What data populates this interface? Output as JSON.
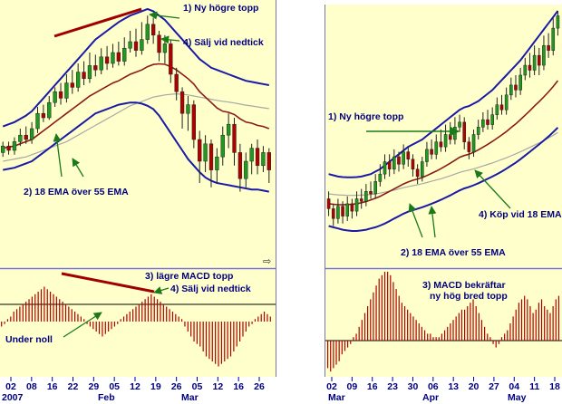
{
  "chart_data": [
    {
      "type": "candlestick",
      "panel": "left",
      "xaxis": {
        "year_label": "2007",
        "tick_labels": [
          "02",
          "08",
          "16",
          "22",
          "29",
          "05",
          "12",
          "19",
          "26",
          "05",
          "12",
          "16",
          "26"
        ],
        "month_labels": [
          "Feb",
          "Mar"
        ]
      },
      "price_ylim": [
        0,
        100
      ],
      "candles": [
        {
          "o": 34,
          "c": 37,
          "h": 39,
          "l": 32
        },
        {
          "o": 37,
          "c": 35,
          "h": 39,
          "l": 33
        },
        {
          "o": 35,
          "c": 39,
          "h": 41,
          "l": 33
        },
        {
          "o": 39,
          "c": 42,
          "h": 45,
          "l": 37
        },
        {
          "o": 42,
          "c": 40,
          "h": 46,
          "l": 38
        },
        {
          "o": 40,
          "c": 45,
          "h": 48,
          "l": 38
        },
        {
          "o": 45,
          "c": 52,
          "h": 55,
          "l": 43
        },
        {
          "o": 52,
          "c": 50,
          "h": 56,
          "l": 48
        },
        {
          "o": 50,
          "c": 57,
          "h": 60,
          "l": 49
        },
        {
          "o": 57,
          "c": 62,
          "h": 64,
          "l": 55
        },
        {
          "o": 62,
          "c": 59,
          "h": 66,
          "l": 56
        },
        {
          "o": 59,
          "c": 66,
          "h": 70,
          "l": 57
        },
        {
          "o": 66,
          "c": 64,
          "h": 72,
          "l": 61
        },
        {
          "o": 64,
          "c": 71,
          "h": 75,
          "l": 62
        },
        {
          "o": 71,
          "c": 68,
          "h": 76,
          "l": 65
        },
        {
          "o": 68,
          "c": 74,
          "h": 80,
          "l": 66
        },
        {
          "o": 74,
          "c": 72,
          "h": 79,
          "l": 69
        },
        {
          "o": 72,
          "c": 78,
          "h": 82,
          "l": 70
        },
        {
          "o": 78,
          "c": 75,
          "h": 83,
          "l": 72
        },
        {
          "o": 75,
          "c": 80,
          "h": 84,
          "l": 73
        },
        {
          "o": 80,
          "c": 76,
          "h": 85,
          "l": 74
        },
        {
          "o": 76,
          "c": 82,
          "h": 87,
          "l": 74
        },
        {
          "o": 82,
          "c": 85,
          "h": 90,
          "l": 80
        },
        {
          "o": 85,
          "c": 81,
          "h": 91,
          "l": 78
        },
        {
          "o": 81,
          "c": 86,
          "h": 94,
          "l": 79
        },
        {
          "o": 86,
          "c": 93,
          "h": 97,
          "l": 84
        },
        {
          "o": 93,
          "c": 88,
          "h": 96,
          "l": 84
        },
        {
          "o": 88,
          "c": 80,
          "h": 90,
          "l": 76
        },
        {
          "o": 80,
          "c": 84,
          "h": 88,
          "l": 75
        },
        {
          "o": 84,
          "c": 70,
          "h": 86,
          "l": 66
        },
        {
          "o": 70,
          "c": 62,
          "h": 73,
          "l": 58
        },
        {
          "o": 62,
          "c": 52,
          "h": 64,
          "l": 45
        },
        {
          "o": 52,
          "c": 56,
          "h": 60,
          "l": 44
        },
        {
          "o": 56,
          "c": 40,
          "h": 58,
          "l": 36
        },
        {
          "o": 40,
          "c": 30,
          "h": 44,
          "l": 20
        },
        {
          "o": 30,
          "c": 38,
          "h": 42,
          "l": 25
        },
        {
          "o": 38,
          "c": 26,
          "h": 40,
          "l": 18
        },
        {
          "o": 26,
          "c": 32,
          "h": 36,
          "l": 20
        },
        {
          "o": 32,
          "c": 42,
          "h": 46,
          "l": 28
        },
        {
          "o": 42,
          "c": 47,
          "h": 52,
          "l": 36
        },
        {
          "o": 47,
          "c": 34,
          "h": 50,
          "l": 28
        },
        {
          "o": 34,
          "c": 22,
          "h": 38,
          "l": 16
        },
        {
          "o": 22,
          "c": 30,
          "h": 34,
          "l": 18
        },
        {
          "o": 30,
          "c": 36,
          "h": 38,
          "l": 24
        },
        {
          "o": 36,
          "c": 28,
          "h": 40,
          "l": 24
        },
        {
          "o": 28,
          "c": 34,
          "h": 37,
          "l": 25
        },
        {
          "o": 34,
          "c": 26,
          "h": 36,
          "l": 20
        }
      ],
      "ema18": [
        36,
        36.5,
        37,
        38,
        39,
        40,
        42,
        44,
        46,
        48,
        50,
        52,
        54,
        56,
        58,
        60,
        61.5,
        63,
        64.5,
        66,
        67,
        68.5,
        70,
        71,
        72,
        73.5,
        74.5,
        74.8,
        74.6,
        73.5,
        72,
        70,
        68,
        65.5,
        62,
        59.5,
        57,
        54.5,
        53,
        52.5,
        51.5,
        49.5,
        48,
        47.5,
        46.5,
        46,
        45
      ],
      "ema55": [
        30,
        30.5,
        31,
        31.5,
        32,
        33,
        34,
        35,
        36,
        37,
        38,
        39,
        40.5,
        42,
        43.5,
        45,
        46.5,
        48,
        49.5,
        51,
        52.5,
        54,
        55.5,
        56.5,
        57.5,
        58.5,
        59.5,
        60,
        60.5,
        60.8,
        61,
        60.8,
        60.5,
        60,
        59.5,
        59,
        58.5,
        58,
        57.6,
        57.2,
        56.8,
        56.3,
        55.8,
        55.4,
        55,
        54.6,
        54.2
      ],
      "bollinger_upper": [
        46,
        47,
        48,
        49.5,
        51,
        53,
        56,
        59,
        62,
        65,
        68,
        71,
        74,
        77,
        80,
        83,
        86,
        88,
        90,
        92,
        94,
        95.5,
        97,
        98,
        99,
        100,
        99,
        97,
        95,
        92,
        89,
        86,
        83,
        80,
        77,
        75,
        73,
        72,
        71,
        70,
        69,
        68,
        67,
        66.5,
        66,
        65.5,
        65
      ],
      "bollinger_lower": [
        26,
        26.5,
        27,
        28,
        29,
        30,
        32,
        34,
        36,
        38,
        40,
        42,
        44,
        46,
        48,
        50,
        52,
        53,
        54,
        55,
        56,
        56.5,
        57,
        57,
        56.5,
        55.5,
        54,
        51,
        47,
        43,
        39,
        35,
        31,
        28,
        25,
        22.5,
        21,
        20,
        19.5,
        19,
        18.5,
        18,
        17.5,
        17,
        17,
        16.5,
        16
      ],
      "macd_ylim": [
        -20,
        20
      ],
      "macd_histogram": [
        -2,
        -1,
        1,
        2,
        4,
        5,
        6,
        7,
        8,
        9,
        10,
        11,
        12,
        13,
        14,
        13,
        12,
        11,
        10,
        9,
        8,
        7,
        6,
        5,
        4,
        3,
        2,
        1,
        -1,
        -2,
        -3,
        -4,
        -5,
        -6,
        -5,
        -4,
        -3,
        -2,
        -1,
        1,
        2,
        3,
        4,
        5,
        6,
        7,
        8,
        9,
        10,
        11,
        10,
        9,
        8,
        7,
        6,
        5,
        4,
        3,
        2,
        1,
        -2,
        -4,
        -6,
        -8,
        -9,
        -10,
        -12,
        -14,
        -15,
        -16,
        -17,
        -18,
        -17,
        -16,
        -15,
        -14,
        -12,
        -10,
        -8,
        -6,
        -4,
        -2,
        -1,
        1,
        2,
        3,
        4,
        3,
        2
      ],
      "annotations": [
        "1) Ny högre topp",
        "4) Sälj vid nedtick",
        "2) 18 EMA över 55 EMA",
        "3) lägre MACD topp",
        "4) Sälj vid nedtick",
        "Under noll"
      ]
    },
    {
      "type": "candlestick",
      "panel": "right",
      "xaxis": {
        "tick_labels": [
          "02",
          "09",
          "16",
          "23",
          "30",
          "06",
          "13",
          "20",
          "27",
          "04",
          "11",
          "18"
        ],
        "month_labels": [
          "Mar",
          "Apr",
          "May"
        ]
      },
      "price_ylim": [
        0,
        100
      ],
      "candles": [
        {
          "o": 24,
          "c": 20,
          "h": 27,
          "l": 17
        },
        {
          "o": 20,
          "c": 16,
          "h": 22,
          "l": 13
        },
        {
          "o": 16,
          "c": 21,
          "h": 24,
          "l": 14
        },
        {
          "o": 21,
          "c": 17,
          "h": 23,
          "l": 14
        },
        {
          "o": 17,
          "c": 22,
          "h": 25,
          "l": 15
        },
        {
          "o": 22,
          "c": 19,
          "h": 24,
          "l": 16
        },
        {
          "o": 19,
          "c": 24,
          "h": 27,
          "l": 17
        },
        {
          "o": 24,
          "c": 23,
          "h": 28,
          "l": 20
        },
        {
          "o": 23,
          "c": 27,
          "h": 30,
          "l": 21
        },
        {
          "o": 27,
          "c": 26,
          "h": 31,
          "l": 24
        },
        {
          "o": 26,
          "c": 31,
          "h": 34,
          "l": 24
        },
        {
          "o": 31,
          "c": 34,
          "h": 38,
          "l": 29
        },
        {
          "o": 34,
          "c": 39,
          "h": 42,
          "l": 32
        },
        {
          "o": 39,
          "c": 36,
          "h": 42,
          "l": 33
        },
        {
          "o": 36,
          "c": 41,
          "h": 44,
          "l": 34
        },
        {
          "o": 41,
          "c": 38,
          "h": 43,
          "l": 35
        },
        {
          "o": 38,
          "c": 43,
          "h": 46,
          "l": 36
        },
        {
          "o": 43,
          "c": 40,
          "h": 45,
          "l": 37
        },
        {
          "o": 40,
          "c": 36,
          "h": 42,
          "l": 33
        },
        {
          "o": 36,
          "c": 33,
          "h": 38,
          "l": 30
        },
        {
          "o": 33,
          "c": 39,
          "h": 41,
          "l": 31
        },
        {
          "o": 39,
          "c": 44,
          "h": 47,
          "l": 37
        },
        {
          "o": 44,
          "c": 42,
          "h": 48,
          "l": 40
        },
        {
          "o": 42,
          "c": 47,
          "h": 50,
          "l": 40
        },
        {
          "o": 47,
          "c": 45,
          "h": 52,
          "l": 43
        },
        {
          "o": 45,
          "c": 50,
          "h": 54,
          "l": 43
        },
        {
          "o": 50,
          "c": 48,
          "h": 55,
          "l": 46
        },
        {
          "o": 48,
          "c": 53,
          "h": 57,
          "l": 46
        },
        {
          "o": 53,
          "c": 55,
          "h": 58,
          "l": 51
        },
        {
          "o": 55,
          "c": 47,
          "h": 57,
          "l": 44
        },
        {
          "o": 47,
          "c": 43,
          "h": 49,
          "l": 40
        },
        {
          "o": 43,
          "c": 50,
          "h": 52,
          "l": 41
        },
        {
          "o": 50,
          "c": 53,
          "h": 56,
          "l": 48
        },
        {
          "o": 53,
          "c": 56,
          "h": 59,
          "l": 51
        },
        {
          "o": 56,
          "c": 54,
          "h": 60,
          "l": 52
        },
        {
          "o": 54,
          "c": 58,
          "h": 61,
          "l": 52
        },
        {
          "o": 58,
          "c": 62,
          "h": 65,
          "l": 56
        },
        {
          "o": 62,
          "c": 60,
          "h": 66,
          "l": 58
        },
        {
          "o": 60,
          "c": 66,
          "h": 69,
          "l": 58
        },
        {
          "o": 66,
          "c": 70,
          "h": 73,
          "l": 64
        },
        {
          "o": 70,
          "c": 68,
          "h": 74,
          "l": 65
        },
        {
          "o": 68,
          "c": 74,
          "h": 77,
          "l": 66
        },
        {
          "o": 74,
          "c": 78,
          "h": 81,
          "l": 72
        },
        {
          "o": 78,
          "c": 76,
          "h": 83,
          "l": 73
        },
        {
          "o": 76,
          "c": 82,
          "h": 86,
          "l": 74
        },
        {
          "o": 82,
          "c": 78,
          "h": 85,
          "l": 74
        },
        {
          "o": 78,
          "c": 86,
          "h": 90,
          "l": 76
        },
        {
          "o": 86,
          "c": 84,
          "h": 91,
          "l": 81
        },
        {
          "o": 84,
          "c": 93,
          "h": 97,
          "l": 82
        },
        {
          "o": 93,
          "c": 98,
          "h": 100,
          "l": 90
        }
      ],
      "ema18": [
        22,
        21.8,
        21.6,
        21.6,
        21.7,
        21.8,
        22,
        22.4,
        22.9,
        23.5,
        24.2,
        25,
        26,
        27,
        28,
        29,
        30,
        30.8,
        31.5,
        32,
        32.6,
        33.4,
        34.3,
        35.2,
        36.2,
        37.3,
        38.4,
        39.6,
        40.8,
        41.5,
        42,
        42.8,
        43.8,
        44.9,
        46,
        47.2,
        48.5,
        49.8,
        51.2,
        52.8,
        54.3,
        56,
        57.8,
        59.6,
        61.5,
        63.3,
        65.2,
        67.2,
        69.4,
        71.8
      ],
      "ema55": [
        26,
        25.8,
        25.6,
        25.5,
        25.4,
        25.4,
        25.4,
        25.5,
        25.6,
        25.8,
        26,
        26.3,
        26.7,
        27.1,
        27.5,
        28,
        28.5,
        28.9,
        29.3,
        29.7,
        30.1,
        30.6,
        31.1,
        31.6,
        32.1,
        32.7,
        33.3,
        34,
        34.7,
        35.2,
        35.6,
        36.1,
        36.7,
        37.3,
        37.9,
        38.5,
        39.2,
        39.9,
        40.6,
        41.4,
        42.2,
        43,
        43.9,
        44.8,
        45.7,
        46.6,
        47.6,
        48.6,
        49.7,
        50.8
      ],
      "bollinger_upper": [
        34,
        33.5,
        33,
        32.8,
        32.7,
        32.7,
        32.8,
        33,
        33.5,
        34,
        35,
        36,
        37.5,
        39,
        40.5,
        42,
        43.5,
        45,
        46,
        47,
        48,
        49.5,
        51,
        52.5,
        54,
        55.5,
        57,
        58.5,
        60,
        61,
        61.5,
        62.5,
        63.5,
        65,
        66.5,
        68,
        70,
        72,
        74,
        76,
        78,
        80,
        82.5,
        85,
        87.5,
        90,
        92.5,
        95,
        97.5,
        100
      ],
      "bollinger_lower": [
        13,
        12.5,
        12,
        11.5,
        11.2,
        11,
        11,
        11.2,
        11.5,
        12,
        12.5,
        13.2,
        14,
        15,
        16,
        17,
        18,
        18.8,
        19.4,
        20,
        20.6,
        21.3,
        22,
        22.8,
        23.6,
        24.5,
        25.4,
        26.4,
        27.4,
        28.2,
        28.8,
        29.5,
        30.3,
        31.2,
        32.1,
        33,
        34,
        35,
        36.2,
        37.4,
        38.6,
        40,
        41.5,
        43,
        44.5,
        46,
        47.6,
        49.2,
        51,
        52.8
      ],
      "macd_ylim": [
        -20,
        20
      ],
      "macd_histogram": [
        -8,
        -9,
        -8,
        -7,
        -6,
        -4,
        -3,
        -2,
        -1,
        1,
        2,
        4,
        6,
        8,
        10,
        12,
        14,
        16,
        18,
        19,
        20,
        20,
        19,
        17,
        15,
        13,
        11,
        10,
        9,
        8,
        7,
        6,
        5,
        4,
        3,
        2,
        2,
        1,
        1,
        1,
        2,
        3,
        4,
        5,
        6,
        7,
        8,
        9,
        9,
        10,
        11,
        12,
        10,
        8,
        6,
        4,
        2,
        1,
        -1,
        -2,
        -1,
        1,
        2,
        3,
        5,
        7,
        9,
        11,
        12,
        13,
        12,
        10,
        8,
        9,
        11,
        12,
        10,
        9,
        8,
        10,
        12,
        13
      ],
      "annotations": [
        "1) Ny högre topp",
        "2) 18 EMA över 55 EMA",
        "4) Köp vid 18 EMA",
        "3) MACD bekräftar",
        "ny hög bred topp"
      ]
    }
  ]
}
